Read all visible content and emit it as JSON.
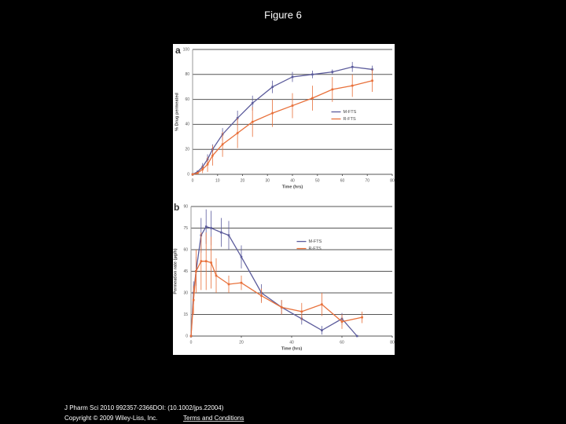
{
  "slide_title": "Figure 6",
  "citation": "J Pharm Sci 2010 992357-2366DOI: (10.1002/jps.22004)",
  "copyright": "Copyright © 2009 Wiley-Liss, Inc.",
  "terms_link": "Terms and Conditions",
  "chart_data": [
    {
      "type": "line",
      "panel": "a",
      "xlabel": "Time (hrs)",
      "ylabel": "% Drug permeated",
      "xlim": [
        0,
        80
      ],
      "xticks": [
        0,
        10,
        20,
        30,
        40,
        50,
        60,
        70,
        80
      ],
      "ylim": [
        0,
        100
      ],
      "yticks": [
        0,
        20,
        40,
        60,
        80,
        100
      ],
      "grid": true,
      "legend": "right",
      "series": [
        {
          "name": "M-FTS",
          "color": "#5c5c9c",
          "x": [
            0,
            2,
            4,
            6,
            8,
            12,
            18,
            24,
            32,
            40,
            48,
            56,
            64,
            72
          ],
          "values": [
            0,
            2,
            6,
            12,
            20,
            32,
            45,
            57,
            70,
            78,
            80,
            82,
            86,
            84
          ],
          "errors": [
            0,
            1,
            3,
            4,
            4,
            5,
            6,
            6,
            5,
            4,
            3,
            2,
            4,
            3
          ]
        },
        {
          "name": "R-FTS",
          "color": "#e8703a",
          "x": [
            0,
            2,
            4,
            6,
            8,
            12,
            18,
            24,
            32,
            40,
            48,
            56,
            64,
            72
          ],
          "values": [
            0,
            1,
            4,
            8,
            15,
            24,
            33,
            42,
            49,
            55,
            61,
            68,
            71,
            75
          ],
          "errors": [
            0,
            1,
            3,
            6,
            8,
            10,
            12,
            12,
            11,
            10,
            10,
            10,
            9,
            9
          ]
        }
      ]
    },
    {
      "type": "line",
      "panel": "b",
      "xlabel": "Time (hrs)",
      "ylabel": "Permeation rate (µg/h)",
      "xlim": [
        0,
        80
      ],
      "xticks": [
        0,
        20,
        40,
        60,
        80
      ],
      "ylim": [
        0,
        90
      ],
      "yticks": [
        0,
        15,
        30,
        45,
        60,
        75,
        90
      ],
      "grid": true,
      "legend": "center",
      "series": [
        {
          "name": "M-FTS",
          "color": "#5c5c9c",
          "x": [
            0,
            1,
            2,
            4,
            6,
            8,
            12,
            15,
            20,
            28,
            36,
            44,
            52,
            60,
            66
          ],
          "values": [
            0,
            30,
            45,
            70,
            76,
            75,
            72,
            70,
            55,
            30,
            20,
            12,
            4,
            12,
            0
          ],
          "errors": [
            0,
            8,
            10,
            12,
            12,
            12,
            10,
            10,
            8,
            6,
            5,
            4,
            3,
            4,
            0
          ]
        },
        {
          "name": "R-FTS",
          "color": "#e8703a",
          "x": [
            0,
            1,
            2,
            4,
            6,
            8,
            10,
            15,
            20,
            28,
            36,
            44,
            52,
            60,
            68
          ],
          "values": [
            0,
            25,
            45,
            52,
            52,
            51,
            42,
            36,
            37,
            28,
            20,
            17,
            22,
            10,
            13
          ],
          "errors": [
            0,
            10,
            15,
            20,
            20,
            18,
            12,
            6,
            5,
            5,
            5,
            6,
            8,
            5,
            4
          ]
        }
      ]
    }
  ]
}
